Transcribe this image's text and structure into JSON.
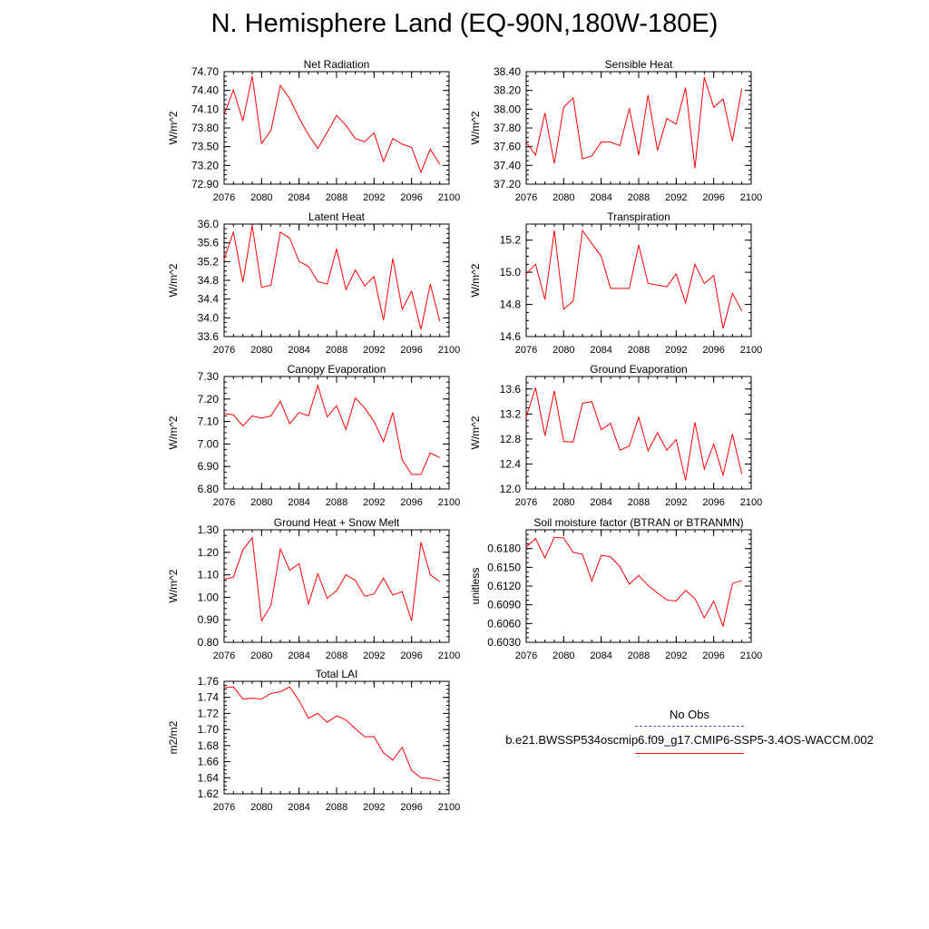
{
  "page": {
    "title": "N. Hemisphere Land (EQ-90N,180W-180E)",
    "colors": {
      "model_line": "#ff0000",
      "obs_line": "#4a4a9a",
      "axis": "#000000"
    }
  },
  "legend": {
    "obs_label": "No Obs",
    "model_label": "b.e21.BWSSP534oscmip6.f09_g17.CMIP6-SSP5-3.4OS-WACCM.002"
  },
  "chart_data": [
    {
      "type": "line",
      "title": "Net Radiation",
      "ylabel": "W/m^2",
      "xlim": [
        2076,
        2100
      ],
      "ylim": [
        72.9,
        74.7
      ],
      "xticks": [
        "2076",
        "2080",
        "2084",
        "2088",
        "2092",
        "2096",
        "2100"
      ],
      "yticks": [
        "72.90",
        "73.20",
        "73.50",
        "73.80",
        "74.10",
        "74.40",
        "74.70"
      ],
      "x": [
        2076,
        2077,
        2078,
        2079,
        2080,
        2081,
        2082,
        2083,
        2084,
        2085,
        2086,
        2087,
        2088,
        2089,
        2090,
        2091,
        2092,
        2093,
        2094,
        2095,
        2096,
        2097,
        2098,
        2099
      ],
      "series": [
        {
          "name": "model",
          "values": [
            74.01,
            74.41,
            73.91,
            74.63,
            73.55,
            73.76,
            74.48,
            74.27,
            73.96,
            73.69,
            73.47,
            73.73,
            74.0,
            73.84,
            73.63,
            73.58,
            73.72,
            73.26,
            73.63,
            73.54,
            73.49,
            73.09,
            73.46,
            73.22
          ]
        }
      ]
    },
    {
      "type": "line",
      "title": "Sensible Heat",
      "ylabel": "W/m^2",
      "xlim": [
        2076,
        2100
      ],
      "ylim": [
        37.2,
        38.4
      ],
      "xticks": [
        "2076",
        "2080",
        "2084",
        "2088",
        "2092",
        "2096",
        "2100"
      ],
      "yticks": [
        "37.20",
        "37.40",
        "37.60",
        "37.80",
        "38.00",
        "38.20",
        "38.40"
      ],
      "x": [
        2076,
        2077,
        2078,
        2079,
        2080,
        2081,
        2082,
        2083,
        2084,
        2085,
        2086,
        2087,
        2088,
        2089,
        2090,
        2091,
        2092,
        2093,
        2094,
        2095,
        2096,
        2097,
        2098,
        2099
      ],
      "series": [
        {
          "name": "model",
          "values": [
            37.65,
            37.51,
            37.96,
            37.42,
            38.02,
            38.12,
            37.47,
            37.5,
            37.65,
            37.65,
            37.61,
            38.01,
            37.51,
            38.15,
            37.56,
            37.9,
            37.84,
            38.23,
            37.37,
            38.34,
            38.02,
            38.11,
            37.66,
            38.22
          ]
        }
      ]
    },
    {
      "type": "line",
      "title": "Latent Heat",
      "ylabel": "W/m^2",
      "xlim": [
        2076,
        2100
      ],
      "ylim": [
        33.6,
        36.0
      ],
      "xticks": [
        "2076",
        "2080",
        "2084",
        "2088",
        "2092",
        "2096",
        "2100"
      ],
      "yticks": [
        "33.6",
        "34.0",
        "34.4",
        "34.8",
        "35.2",
        "35.6",
        "36.0"
      ],
      "x": [
        2076,
        2077,
        2078,
        2079,
        2080,
        2081,
        2082,
        2083,
        2084,
        2085,
        2086,
        2087,
        2088,
        2089,
        2090,
        2091,
        2092,
        2093,
        2094,
        2095,
        2096,
        2097,
        2098,
        2099
      ],
      "series": [
        {
          "name": "model",
          "values": [
            35.25,
            35.83,
            34.76,
            35.97,
            34.65,
            34.7,
            35.83,
            35.7,
            35.2,
            35.1,
            34.77,
            34.72,
            35.47,
            34.6,
            35.02,
            34.68,
            34.88,
            33.95,
            35.27,
            34.18,
            34.57,
            33.75,
            34.72,
            33.93
          ]
        }
      ]
    },
    {
      "type": "line",
      "title": "Transpiration",
      "ylabel": "W/m^2",
      "xlim": [
        2076,
        2100
      ],
      "ylim": [
        14.6,
        15.3
      ],
      "xticks": [
        "2076",
        "2080",
        "2084",
        "2088",
        "2092",
        "2096",
        "2100"
      ],
      "yticks": [
        "14.6",
        "14.8",
        "15.0",
        "15.2"
      ],
      "x": [
        2076,
        2077,
        2078,
        2079,
        2080,
        2081,
        2082,
        2083,
        2084,
        2085,
        2086,
        2087,
        2088,
        2089,
        2090,
        2091,
        2092,
        2093,
        2094,
        2095,
        2096,
        2097,
        2098,
        2099
      ],
      "series": [
        {
          "name": "model",
          "values": [
            14.99,
            15.05,
            14.83,
            15.26,
            14.77,
            14.82,
            15.26,
            15.18,
            15.1,
            14.9,
            14.9,
            14.9,
            15.17,
            14.93,
            14.92,
            14.91,
            14.99,
            14.81,
            15.05,
            14.93,
            14.98,
            14.65,
            14.87,
            14.76
          ]
        }
      ]
    },
    {
      "type": "line",
      "title": "Canopy Evaporation",
      "ylabel": "W/m^2",
      "xlim": [
        2076,
        2100
      ],
      "ylim": [
        6.8,
        7.3
      ],
      "xticks": [
        "2076",
        "2080",
        "2084",
        "2088",
        "2092",
        "2096",
        "2100"
      ],
      "yticks": [
        "6.80",
        "6.90",
        "7.00",
        "7.10",
        "7.20",
        "7.30"
      ],
      "x": [
        2076,
        2077,
        2078,
        2079,
        2080,
        2081,
        2082,
        2083,
        2084,
        2085,
        2086,
        2087,
        2088,
        2089,
        2090,
        2091,
        2092,
        2093,
        2094,
        2095,
        2096,
        2097,
        2098,
        2099
      ],
      "series": [
        {
          "name": "model",
          "values": [
            7.135,
            7.13,
            7.08,
            7.125,
            7.115,
            7.125,
            7.19,
            7.09,
            7.14,
            7.125,
            7.26,
            7.12,
            7.17,
            7.065,
            7.205,
            7.16,
            7.1,
            7.01,
            7.14,
            6.93,
            6.865,
            6.865,
            6.96,
            6.94
          ]
        }
      ]
    },
    {
      "type": "line",
      "title": "Ground Evaporation",
      "ylabel": "W/m^2",
      "xlim": [
        2076,
        2100
      ],
      "ylim": [
        12.0,
        13.8
      ],
      "xticks": [
        "2076",
        "2080",
        "2084",
        "2088",
        "2092",
        "2096",
        "2100"
      ],
      "yticks": [
        "12.0",
        "12.4",
        "12.8",
        "13.2",
        "13.6"
      ],
      "x": [
        2076,
        2077,
        2078,
        2079,
        2080,
        2081,
        2082,
        2083,
        2084,
        2085,
        2086,
        2087,
        2088,
        2089,
        2090,
        2091,
        2092,
        2093,
        2094,
        2095,
        2096,
        2097,
        2098,
        2099
      ],
      "series": [
        {
          "name": "model",
          "values": [
            13.15,
            13.62,
            12.85,
            13.57,
            12.76,
            12.75,
            13.37,
            13.4,
            12.95,
            13.05,
            12.62,
            12.69,
            13.15,
            12.61,
            12.9,
            12.62,
            12.79,
            12.14,
            13.07,
            12.32,
            12.72,
            12.22,
            12.88,
            12.24
          ]
        }
      ]
    },
    {
      "type": "line",
      "title": "Ground Heat + Snow Melt",
      "ylabel": "W/m^2",
      "xlim": [
        2076,
        2100
      ],
      "ylim": [
        0.8,
        1.3
      ],
      "xticks": [
        "2076",
        "2080",
        "2084",
        "2088",
        "2092",
        "2096",
        "2100"
      ],
      "yticks": [
        "0.80",
        "0.90",
        "1.00",
        "1.10",
        "1.20",
        "1.30"
      ],
      "x": [
        2076,
        2077,
        2078,
        2079,
        2080,
        2081,
        2082,
        2083,
        2084,
        2085,
        2086,
        2087,
        2088,
        2089,
        2090,
        2091,
        2092,
        2093,
        2094,
        2095,
        2096,
        2097,
        2098,
        2099
      ],
      "series": [
        {
          "name": "model",
          "values": [
            1.08,
            1.09,
            1.21,
            1.265,
            0.895,
            0.965,
            1.215,
            1.12,
            1.15,
            0.97,
            1.105,
            0.995,
            1.03,
            1.1,
            1.075,
            1.005,
            1.015,
            1.085,
            1.01,
            1.025,
            0.895,
            1.245,
            1.1,
            1.07
          ]
        }
      ]
    },
    {
      "type": "line",
      "title": "Soil moisture factor (BTRAN or BTRANMN)",
      "ylabel": "unitless",
      "xlim": [
        2076,
        2100
      ],
      "ylim": [
        0.603,
        0.621
      ],
      "xticks": [
        "2076",
        "2080",
        "2084",
        "2088",
        "2092",
        "2096",
        "2100"
      ],
      "yticks": [
        "0.6030",
        "0.6060",
        "0.6090",
        "0.6120",
        "0.6150",
        "0.6180"
      ],
      "x": [
        2076,
        2077,
        2078,
        2079,
        2080,
        2081,
        2082,
        2083,
        2084,
        2085,
        2086,
        2087,
        2088,
        2089,
        2090,
        2091,
        2092,
        2093,
        2094,
        2095,
        2096,
        2097,
        2098,
        2099
      ],
      "series": [
        {
          "name": "model",
          "values": [
            0.6182,
            0.6196,
            0.6165,
            0.6198,
            0.6197,
            0.6174,
            0.6171,
            0.6128,
            0.6169,
            0.6167,
            0.6151,
            0.6123,
            0.6137,
            0.6121,
            0.6109,
            0.6098,
            0.6096,
            0.6113,
            0.61,
            0.6069,
            0.6096,
            0.6056,
            0.6124,
            0.6129
          ]
        }
      ]
    },
    {
      "type": "line",
      "title": "Total LAI",
      "ylabel": "m2/m2",
      "xlim": [
        2076,
        2100
      ],
      "ylim": [
        1.62,
        1.76
      ],
      "xticks": [
        "2076",
        "2080",
        "2084",
        "2088",
        "2092",
        "2096",
        "2100"
      ],
      "yticks": [
        "1.62",
        "1.64",
        "1.66",
        "1.68",
        "1.70",
        "1.72",
        "1.74",
        "1.76"
      ],
      "x": [
        2076,
        2077,
        2078,
        2079,
        2080,
        2081,
        2082,
        2083,
        2084,
        2085,
        2086,
        2087,
        2088,
        2089,
        2090,
        2091,
        2092,
        2093,
        2094,
        2095,
        2096,
        2097,
        2098,
        2099
      ],
      "series": [
        {
          "name": "model",
          "values": [
            1.752,
            1.753,
            1.738,
            1.739,
            1.738,
            1.745,
            1.747,
            1.753,
            1.736,
            1.714,
            1.72,
            1.709,
            1.717,
            1.712,
            1.701,
            1.691,
            1.691,
            1.671,
            1.662,
            1.678,
            1.649,
            1.64,
            1.639,
            1.636
          ]
        }
      ]
    }
  ]
}
